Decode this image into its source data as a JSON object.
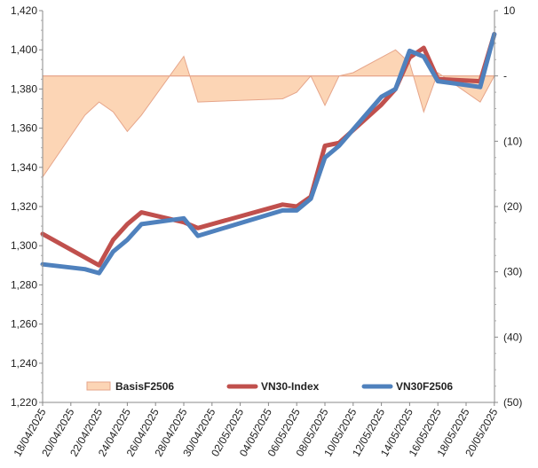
{
  "chart_data": {
    "type": "line",
    "x_labels": [
      "18/04/2025",
      "20/04/2025",
      "22/04/2025",
      "24/04/2025",
      "26/04/2025",
      "28/04/2025",
      "30/04/2025",
      "02/05/2025",
      "04/05/2025",
      "06/05/2025",
      "08/05/2025",
      "10/05/2025",
      "12/05/2025",
      "14/05/2025",
      "16/05/2025",
      "18/05/2025",
      "20/05/2025"
    ],
    "y_left": {
      "ticks": [
        "1,220",
        "1,240",
        "1,260",
        "1,280",
        "1,300",
        "1,320",
        "1,340",
        "1,360",
        "1,380",
        "1,400",
        "1,420"
      ],
      "min": 1220,
      "max": 1420
    },
    "y_right": {
      "ticks": [
        "(50)",
        "(40)",
        "(30)",
        "(20)",
        "(10)",
        "-",
        "10"
      ],
      "min": -50,
      "max": 10
    },
    "series": [
      {
        "name": "BasisF2506",
        "type": "area",
        "axis": "right",
        "color": "#fcd5b5",
        "border": "#e6a58a",
        "points": [
          [
            "18/04/2025",
            -15.5
          ],
          [
            "21/04/2025",
            -6
          ],
          [
            "22/04/2025",
            -4
          ],
          [
            "23/04/2025",
            -5.5
          ],
          [
            "24/04/2025",
            -8.5
          ],
          [
            "25/04/2025",
            -6
          ],
          [
            "28/04/2025",
            3
          ],
          [
            "29/04/2025",
            -4
          ],
          [
            "05/05/2025",
            -3.5
          ],
          [
            "06/05/2025",
            -2.5
          ],
          [
            "07/05/2025",
            0
          ],
          [
            "08/05/2025",
            -4.5
          ],
          [
            "09/05/2025",
            0
          ],
          [
            "10/05/2025",
            0.5
          ],
          [
            "13/05/2025",
            4
          ],
          [
            "14/05/2025",
            2
          ],
          [
            "15/05/2025",
            -5.5
          ],
          [
            "16/05/2025",
            0.5
          ],
          [
            "19/05/2025",
            -4
          ],
          [
            "20/05/2025",
            0
          ]
        ]
      },
      {
        "name": "VN30-Index",
        "type": "line",
        "axis": "left",
        "color": "#c0504d",
        "points": [
          [
            "18/04/2025",
            1306
          ],
          [
            "22/04/2025",
            1290
          ],
          [
            "23/04/2025",
            1303
          ],
          [
            "24/04/2025",
            1311
          ],
          [
            "25/04/2025",
            1317
          ],
          [
            "28/04/2025",
            1312
          ],
          [
            "29/04/2025",
            1309
          ],
          [
            "05/05/2025",
            1321
          ],
          [
            "06/05/2025",
            1320
          ],
          [
            "07/05/2025",
            1325
          ],
          [
            "08/05/2025",
            1351
          ],
          [
            "09/05/2025",
            1352.5
          ],
          [
            "12/05/2025",
            1372
          ],
          [
            "13/05/2025",
            1380
          ],
          [
            "14/05/2025",
            1396
          ],
          [
            "15/05/2025",
            1401
          ],
          [
            "16/05/2025",
            1385
          ],
          [
            "19/05/2025",
            1384
          ],
          [
            "20/05/2025",
            1408
          ]
        ]
      },
      {
        "name": "VN30F2506",
        "type": "line",
        "axis": "left",
        "color": "#4f81bd",
        "points": [
          [
            "18/04/2025",
            1290.5
          ],
          [
            "21/04/2025",
            1288
          ],
          [
            "22/04/2025",
            1286
          ],
          [
            "23/04/2025",
            1297
          ],
          [
            "24/04/2025",
            1303
          ],
          [
            "25/04/2025",
            1311
          ],
          [
            "28/04/2025",
            1314
          ],
          [
            "29/04/2025",
            1305
          ],
          [
            "05/05/2025",
            1318
          ],
          [
            "06/05/2025",
            1318
          ],
          [
            "07/05/2025",
            1324
          ],
          [
            "08/05/2025",
            1345
          ],
          [
            "09/05/2025",
            1351
          ],
          [
            "12/05/2025",
            1376
          ],
          [
            "13/05/2025",
            1380
          ],
          [
            "14/05/2025",
            1399.5
          ],
          [
            "15/05/2025",
            1396.5
          ],
          [
            "16/05/2025",
            1384
          ],
          [
            "19/05/2025",
            1381
          ],
          [
            "20/05/2025",
            1408
          ]
        ]
      }
    ],
    "legend": {
      "position": "bottom-inside",
      "entries": [
        "BasisF2506",
        "VN30-Index",
        "VN30F2506"
      ]
    },
    "grid": false,
    "zero_line_right": true
  }
}
